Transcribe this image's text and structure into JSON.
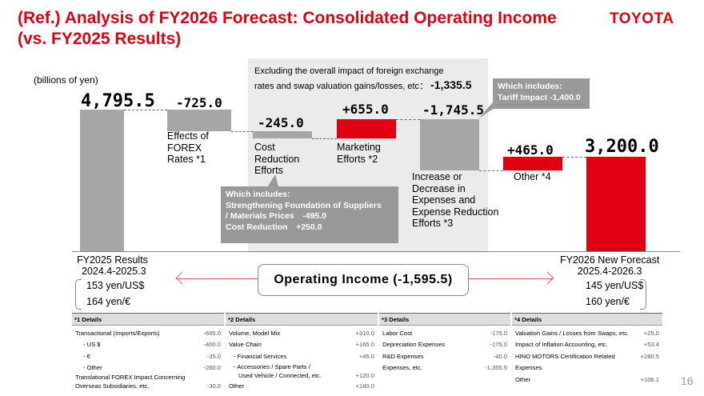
{
  "header": {
    "title_line1": "(Ref.) Analysis of FY2026 Forecast: Consolidated Operating Income",
    "title_line2": "(vs. FY2025 Results)",
    "logo": "TOYOTA"
  },
  "unit_label": "(billions of yen)",
  "exclusion_note": {
    "line1": "Excluding the overall impact of foreign exchange",
    "line2": "rates and swap valuation gains/losses, etc：",
    "value": "-1,335.5"
  },
  "chart_data": {
    "type": "waterfall",
    "title": "Consolidated Operating Income",
    "steps": [
      {
        "label": "FY2025 Results",
        "value": 4795.5,
        "display": "4,795.5",
        "kind": "total"
      },
      {
        "label": "Effects of FOREX Rates *1",
        "value": -725.0,
        "display": "-725.0",
        "kind": "delta"
      },
      {
        "label": "Cost Reduction Efforts",
        "value": -245.0,
        "display": "-245.0",
        "kind": "delta"
      },
      {
        "label": "Marketing Efforts *2",
        "value": 655.0,
        "display": "+655.0",
        "kind": "delta"
      },
      {
        "label": "Increase or Decrease in Expenses and Expense Reduction Efforts *3",
        "value": -1745.5,
        "display": "-1,745.5",
        "kind": "delta"
      },
      {
        "label": "Other *4",
        "value": 465.0,
        "display": "+465.0",
        "kind": "delta"
      },
      {
        "label": "FY2026 New Forecast",
        "value": 3200.0,
        "display": "3,200.0",
        "kind": "total"
      }
    ],
    "total_change": -1595.5
  },
  "bars": {
    "start_value": "4,795.5",
    "forex_value": "-725.0",
    "forex_label": [
      "Effects of",
      "FOREX",
      "Rates *1"
    ],
    "cost_value": "-245.0",
    "cost_label": [
      "Cost",
      "Reduction",
      "Efforts"
    ],
    "marketing_value": "+655.0",
    "marketing_label": [
      "Marketing",
      "Efforts *2"
    ],
    "expenses_value": "-1,745.5",
    "expenses_label": [
      "Increase or",
      "Decrease in",
      "Expenses and",
      "Expense Reduction",
      "Efforts *3"
    ],
    "other_value": "+465.0",
    "other_label": "Other *4",
    "end_value": "3,200.0"
  },
  "callouts": {
    "tariff_line1": "Which includes:",
    "tariff_line2": "Tariff Impact -1,400.0",
    "cost_line1": "Which includes:",
    "cost_line2": "Strengthening Foundation of Suppliers",
    "cost_line3": "/ Materials Prices　-495.0",
    "cost_line4": "Cost Reduction　+250.0"
  },
  "periods": {
    "left_name": "FY2025 Results",
    "left_range": "2024.4-2025.3",
    "left_usd": "153 yen/US$",
    "left_eur": "164 yen/€",
    "right_name": "FY2026 New Forecast",
    "right_range": "2025.4-2026.3",
    "right_usd": "145 yen/US$",
    "right_eur": "160 yen/€"
  },
  "operating_income_label": "Operating Income (-1,595.5)",
  "details": {
    "d1": {
      "title": "*1 Details",
      "rows": [
        [
          "Transactional (Imports/Exports)",
          "-695.0"
        ],
        [
          "- US $",
          "-400.0"
        ],
        [
          "- €",
          "-35.0"
        ],
        [
          "- Other",
          "-260.0"
        ],
        [
          "Translational FOREX Impact Concerning",
          ""
        ],
        [
          "Overseas Subsidiaries, etc.",
          "-30.0"
        ]
      ]
    },
    "d2": {
      "title": "*2 Details",
      "rows": [
        [
          "Volume, Model Mix",
          "+310.0"
        ],
        [
          "Value Chain",
          "+165.0"
        ],
        [
          "- Financial Services",
          "+45.0"
        ],
        [
          "- Accessories / Spare Parts /",
          ""
        ],
        [
          "Used Vehicle / Connected, etc.",
          "+120.0"
        ],
        [
          "Other",
          "+180.0"
        ]
      ]
    },
    "d3": {
      "title": "*3 Details",
      "rows": [
        [
          "Labor Cost",
          "-175.0"
        ],
        [
          "Depreciation Expenses",
          "-175.0"
        ],
        [
          "R&D Expenses",
          "-40.0"
        ],
        [
          "Expenses, etc.",
          "-1,355.5"
        ]
      ]
    },
    "d4": {
      "title": "*4 Details",
      "rows": [
        [
          "Valuation Gains / Losses from Swaps, etc.",
          "+25.0"
        ],
        [
          "Impact of Inflation Accounting, etc.",
          "+53.4"
        ],
        [
          "HINO MOTORS Certification Related",
          "+280.5"
        ],
        [
          "Expenses",
          ""
        ],
        [
          "Other",
          "+106.1"
        ]
      ]
    }
  },
  "page_number": "16",
  "colors": {
    "accent": "#e00012",
    "bar_gray": "#a6a6a6",
    "panel": "#ebebeb"
  }
}
